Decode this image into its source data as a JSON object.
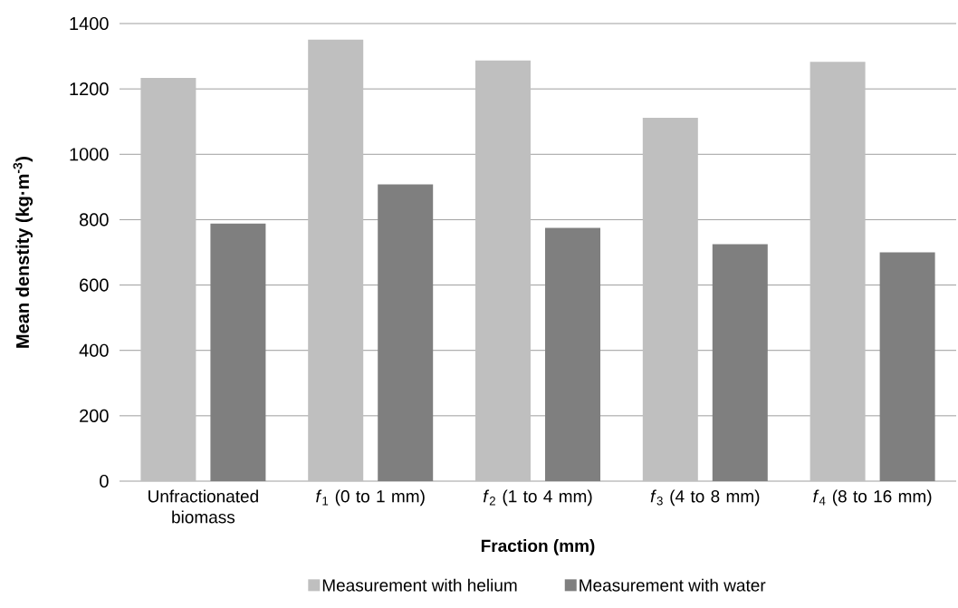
{
  "chart_data": {
    "type": "bar",
    "categories": [
      "Unfractionated biomass",
      "*f*$_{1}$ (0 to 1 mm)",
      "*f*$_{2}$ (1 to 4 mm)",
      "*f*$_{3}$ (4 to 8 mm)",
      "*f*$_{4}$ (8 to 16 mm)"
    ],
    "series": [
      {
        "name": "Measurement with helium",
        "color": "#bfbfbf",
        "values": [
          1234,
          1351,
          1287,
          1112,
          1283
        ]
      },
      {
        "name": "Measurement with water",
        "color": "#7f7f7f",
        "values": [
          788,
          908,
          775,
          725,
          700
        ]
      }
    ],
    "xlabel": "Fraction (mm)",
    "ylabel": "Mean denstity (kg·m$^{-3}$)",
    "ylim": [
      0,
      1400
    ],
    "yticks": [
      0,
      200,
      400,
      600,
      800,
      1000,
      1200,
      1400
    ],
    "grid": "y",
    "legend": "bottom"
  }
}
